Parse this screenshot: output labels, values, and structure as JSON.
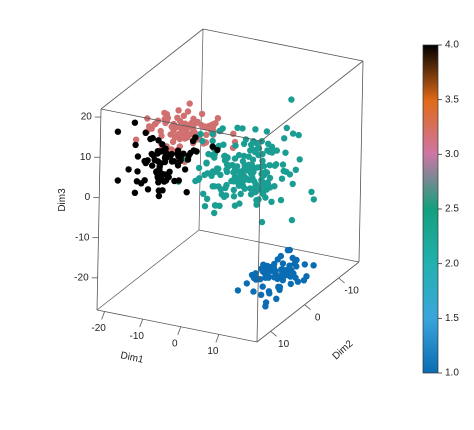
{
  "chart_data": {
    "type": "scatter",
    "projection": "3d",
    "title": "",
    "axes": {
      "x": {
        "label": "Dim1",
        "range": [
          -22,
          20
        ],
        "ticks": [
          "-20",
          "-10",
          "0",
          "10"
        ]
      },
      "y": {
        "label": "Dim2",
        "range": [
          -16,
          14
        ],
        "ticks": [
          "-10",
          "0",
          "10"
        ]
      },
      "z": {
        "label": "Dim3",
        "range": [
          -28,
          22
        ],
        "ticks": [
          "-20",
          "-10",
          "0",
          "10",
          "20"
        ]
      }
    },
    "colorbar": {
      "range": [
        1.0,
        4.0
      ],
      "ticks": [
        "1.0",
        "1.5",
        "2.0",
        "2.5",
        "3.0",
        "3.5",
        "4.0"
      ],
      "placement": "right",
      "colors": [
        "#0a6cb2",
        "#3aa6dc",
        "#23b0b0",
        "#13a07e",
        "#cf75a4",
        "#e06a18",
        "#000000"
      ]
    },
    "clusters": [
      {
        "value": 4.0,
        "color": "#000000",
        "n": 80,
        "center": [
          -16,
          2,
          2
        ],
        "spread": [
          3.6,
          3.0,
          3.2
        ]
      },
      {
        "value": 3.0,
        "color": "#d07070",
        "n": 95,
        "center": [
          -5,
          8,
          16
        ],
        "spread": [
          4.5,
          2.5,
          2.2
        ]
      },
      {
        "value": 2.25,
        "color": "#1a9e93",
        "n": 190,
        "center": [
          5,
          2,
          4
        ],
        "spread": [
          5.0,
          3.2,
          4.2
        ]
      },
      {
        "value": 1.15,
        "color": "#0a6cb2",
        "n": 75,
        "center": [
          12,
          -1,
          -23
        ],
        "spread": [
          3.2,
          2.6,
          2.6
        ]
      }
    ]
  }
}
